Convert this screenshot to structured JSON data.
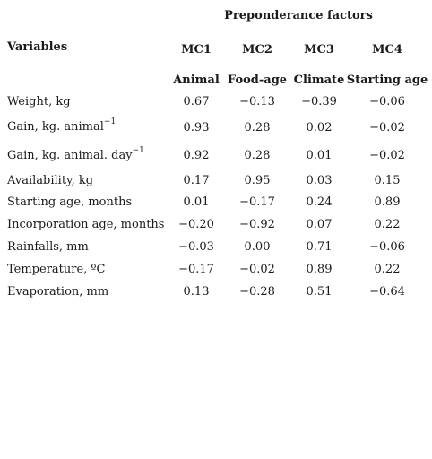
{
  "table": {
    "group_header": "Preponderance factors",
    "variables_header": "Variables",
    "columns": [
      {
        "code": "MC1",
        "name": "Animal"
      },
      {
        "code": "MC2",
        "name": "Food-age"
      },
      {
        "code": "MC3",
        "name": "Climate"
      },
      {
        "code": "MC4",
        "name": "Starting age"
      }
    ],
    "rows": [
      {
        "label": "Weight, kg",
        "sup": "",
        "values": [
          "0.67",
          "−0.13",
          "−0.39",
          "−0.06"
        ]
      },
      {
        "label": "Gain, kg. animal",
        "sup": "−1",
        "values": [
          "0.93",
          "0.28",
          "0.02",
          "−0.02"
        ]
      },
      {
        "label": "Gain, kg. animal. day",
        "sup": "−1",
        "values": [
          "0.92",
          "0.28",
          "0.01",
          "−0.02"
        ]
      },
      {
        "label": "Availability, kg",
        "sup": "",
        "values": [
          "0.17",
          "0.95",
          "0.03",
          "0.15"
        ]
      },
      {
        "label": "Starting age, months",
        "sup": "",
        "values": [
          "0.01",
          "−0.17",
          "0.24",
          "0.89"
        ]
      },
      {
        "label": "Incorporation age, months",
        "sup": "",
        "values": [
          "−0.20",
          "−0.92",
          "0.07",
          "0.22"
        ]
      },
      {
        "label": "Rainfalls, mm",
        "sup": "",
        "values": [
          "−0.03",
          "0.00",
          "0.71",
          "−0.06"
        ]
      },
      {
        "label": "Temperature, ºC",
        "sup": "",
        "values": [
          "−0.17",
          "−0.02",
          "0.89",
          "0.22"
        ]
      },
      {
        "label": "Evaporation, mm",
        "sup": "",
        "values": [
          "0.13",
          "−0.28",
          "0.51",
          "−0.64"
        ]
      }
    ]
  }
}
